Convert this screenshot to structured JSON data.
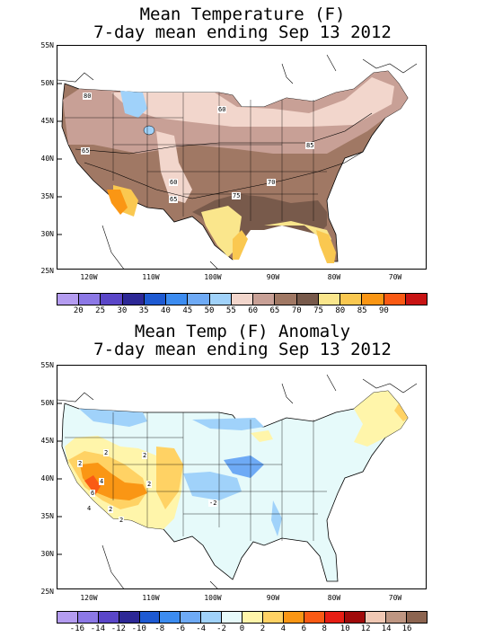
{
  "panel_top": {
    "title_line1": "Mean Temperature (F)",
    "title_line2": "7-day mean ending Sep 13 2012",
    "colorbar_labels": [
      "20",
      "25",
      "30",
      "35",
      "40",
      "45",
      "50",
      "55",
      "60",
      "65",
      "70",
      "75",
      "80",
      "85",
      "90"
    ],
    "colorbar_colors": [
      "#b49cf0",
      "#8c78e6",
      "#5a46c8",
      "#2d2896",
      "#1e5ad2",
      "#3c8cf0",
      "#6eaaf5",
      "#a0d2fa",
      "#f2d6cc",
      "#c8a096",
      "#a07864",
      "#785a4b",
      "#fae68c",
      "#fac850",
      "#fa9614",
      "#fa5a14",
      "#c81414"
    ],
    "contour_labels": [
      "80",
      "60",
      "65",
      "65",
      "60",
      "75",
      "70",
      "85"
    ]
  },
  "panel_bottom": {
    "title_line1": "Mean Temp (F) Anomaly",
    "title_line2": "7-day mean ending Sep 13 2012",
    "colorbar_labels": [
      "-16",
      "-14",
      "-12",
      "-10",
      "-8",
      "-6",
      "-4",
      "-2",
      "0",
      "2",
      "4",
      "6",
      "8",
      "10",
      "12",
      "14",
      "16"
    ],
    "colorbar_colors": [
      "#b49cf0",
      "#8c78e6",
      "#5a46c8",
      "#2d2896",
      "#1e5ad2",
      "#3c8cf0",
      "#6eaaf5",
      "#a0d2fa",
      "#e6fafa",
      "#fff5aa",
      "#ffd264",
      "#fa9614",
      "#fa5a14",
      "#e61e14",
      "#a00a0a",
      "#f0c8b4",
      "#be9682",
      "#8c6450"
    ],
    "contour_labels": [
      "2",
      "2",
      "4",
      "2",
      "6",
      "4",
      "2",
      "2",
      "-2",
      "2"
    ]
  },
  "axes": {
    "lat_labels": [
      "55N",
      "50N",
      "45N",
      "40N",
      "35N",
      "30N",
      "25N"
    ],
    "lon_labels": [
      "120W",
      "110W",
      "100W",
      "90W",
      "80W",
      "70W"
    ]
  }
}
